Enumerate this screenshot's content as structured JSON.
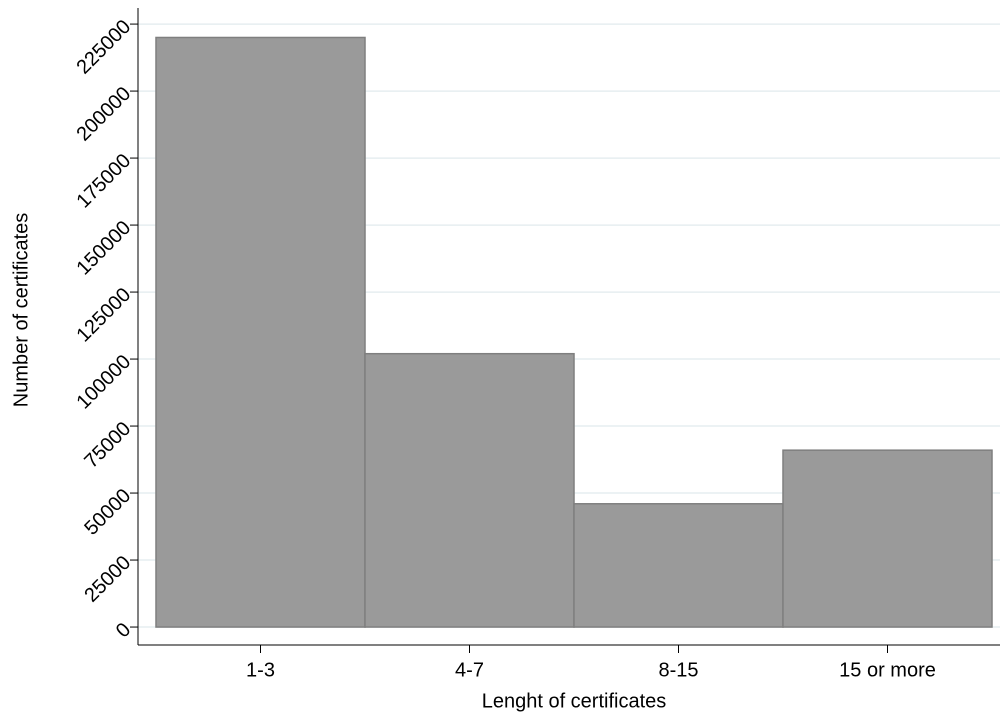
{
  "chart_data": {
    "type": "bar",
    "x_label": "Lenght of certificates",
    "y_label": "Number of certificates",
    "categories": [
      "1-3",
      "4-7",
      "8-15",
      "15 or more"
    ],
    "values": [
      220000,
      102000,
      46000,
      66000
    ],
    "color": "#9a9a9a",
    "ylim": [
      -6700,
      231000
    ],
    "yticks": [
      0,
      25000,
      50000,
      75000,
      100000,
      125000,
      150000,
      175000,
      200000,
      225000
    ],
    "grid": true
  }
}
